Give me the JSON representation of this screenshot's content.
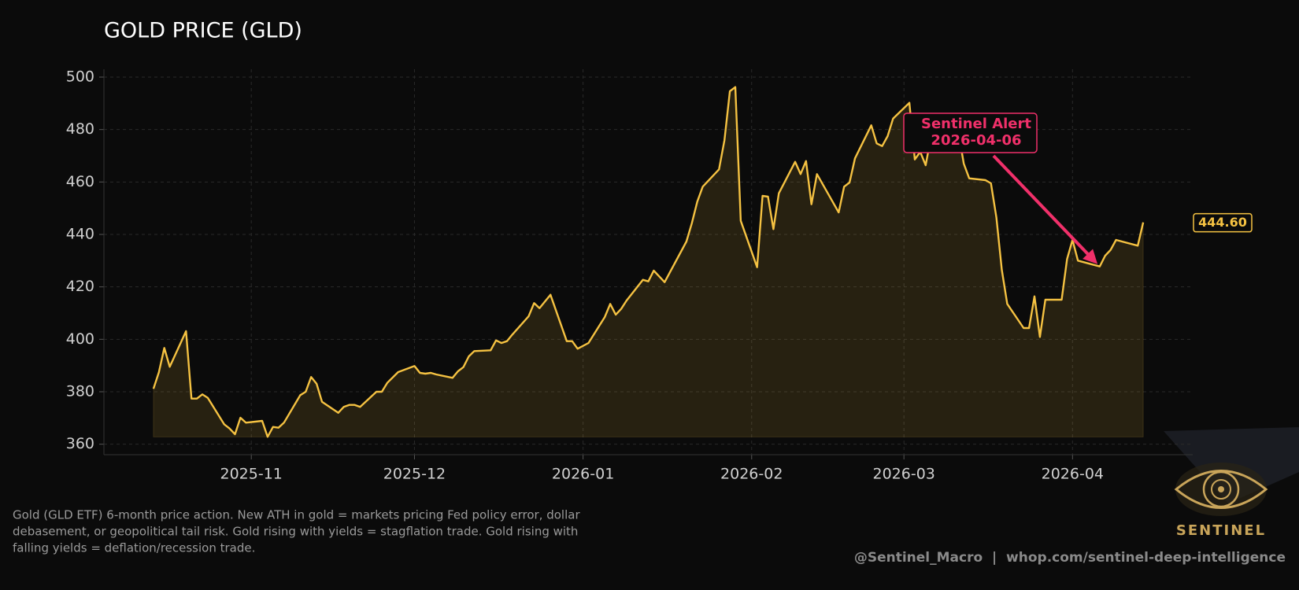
{
  "chart_data": {
    "type": "area-line",
    "title": "GOLD PRICE (GLD)",
    "x": [
      "2025-10-14",
      "2025-10-15",
      "2025-10-16",
      "2025-10-17",
      "2025-10-20",
      "2025-10-21",
      "2025-10-22",
      "2025-10-23",
      "2025-10-24",
      "2025-10-27",
      "2025-10-28",
      "2025-10-29",
      "2025-10-30",
      "2025-10-31",
      "2025-11-03",
      "2025-11-04",
      "2025-11-05",
      "2025-11-06",
      "2025-11-07",
      "2025-11-10",
      "2025-11-11",
      "2025-11-12",
      "2025-11-13",
      "2025-11-14",
      "2025-11-17",
      "2025-11-18",
      "2025-11-19",
      "2025-11-20",
      "2025-11-21",
      "2025-11-24",
      "2025-11-25",
      "2025-11-26",
      "2025-11-28",
      "2025-12-01",
      "2025-12-02",
      "2025-12-03",
      "2025-12-04",
      "2025-12-05",
      "2025-12-08",
      "2025-12-09",
      "2025-12-10",
      "2025-12-11",
      "2025-12-12",
      "2025-12-15",
      "2025-12-16",
      "2025-12-17",
      "2025-12-18",
      "2025-12-19",
      "2025-12-22",
      "2025-12-23",
      "2025-12-24",
      "2025-12-26",
      "2025-12-29",
      "2025-12-30",
      "2025-12-31",
      "2026-01-02",
      "2026-01-05",
      "2026-01-06",
      "2026-01-07",
      "2026-01-08",
      "2026-01-09",
      "2026-01-12",
      "2026-01-13",
      "2026-01-14",
      "2026-01-15",
      "2026-01-16",
      "2026-01-20",
      "2026-01-21",
      "2026-01-22",
      "2026-01-23",
      "2026-01-26",
      "2026-01-27",
      "2026-01-28",
      "2026-01-29",
      "2026-01-30",
      "2026-02-02",
      "2026-02-03",
      "2026-02-04",
      "2026-02-05",
      "2026-02-06",
      "2026-02-09",
      "2026-02-10",
      "2026-02-11",
      "2026-02-12",
      "2026-02-13",
      "2026-02-17",
      "2026-02-18",
      "2026-02-19",
      "2026-02-20",
      "2026-02-23",
      "2026-02-24",
      "2026-02-25",
      "2026-02-26",
      "2026-02-27",
      "2026-03-02",
      "2026-03-03",
      "2026-03-04",
      "2026-03-05",
      "2026-03-06",
      "2026-03-09",
      "2026-03-10",
      "2026-03-11",
      "2026-03-12",
      "2026-03-13",
      "2026-03-16",
      "2026-03-17",
      "2026-03-18",
      "2026-03-19",
      "2026-03-20",
      "2026-03-23",
      "2026-03-24",
      "2026-03-25",
      "2026-03-26",
      "2026-03-27",
      "2026-03-30",
      "2026-03-31",
      "2026-04-01",
      "2026-04-02",
      "2026-04-06",
      "2026-04-07",
      "2026-04-08",
      "2026-04-09",
      "2026-04-13",
      "2026-04-14"
    ],
    "series": [
      {
        "color": "#f5c242",
        "values": [
          381.1,
          387.4,
          396.7,
          389.5,
          403.1,
          377.4,
          377.4,
          379.0,
          377.7,
          367.6,
          366.0,
          363.8,
          370.1,
          368.2,
          368.9,
          362.8,
          366.6,
          366.3,
          368.2,
          378.7,
          380.0,
          385.6,
          383.1,
          376.2,
          372.0,
          374.2,
          375.0,
          375.0,
          374.2,
          380.0,
          380.0,
          383.4,
          387.5,
          389.8,
          387.2,
          386.9,
          387.2,
          386.6,
          385.3,
          387.8,
          389.4,
          393.5,
          395.5,
          395.8,
          399.6,
          398.6,
          399.3,
          401.8,
          408.8,
          413.8,
          411.9,
          417.0,
          399.3,
          399.3,
          396.4,
          398.6,
          408.5,
          413.5,
          409.4,
          411.6,
          414.8,
          422.7,
          422.1,
          426.2,
          424.0,
          421.8,
          437.3,
          444.3,
          452.5,
          458.2,
          464.8,
          475.9,
          494.6,
          496.2,
          445.2,
          427.5,
          454.7,
          454.4,
          442.0,
          455.7,
          467.7,
          463.0,
          468.0,
          451.5,
          463.0,
          448.4,
          458.2,
          459.8,
          469.0,
          481.6,
          474.7,
          473.7,
          477.5,
          484.2,
          490.2,
          468.6,
          471.5,
          466.4,
          477.5,
          482.3,
          482.3,
          479.1,
          467.0,
          461.4,
          460.7,
          459.5,
          446.5,
          426.5,
          413.5,
          404.3,
          404.3,
          416.4,
          400.9,
          415.1,
          415.1,
          430.6,
          437.9,
          430.0,
          427.8,
          431.9,
          434.1,
          437.9,
          435.7,
          444.6
        ]
      }
    ],
    "ylim": [
      356,
      503
    ],
    "yticks": [
      360,
      380,
      400,
      420,
      440,
      460,
      480,
      500
    ],
    "xticks": [
      "2025-11",
      "2025-12",
      "2026-01",
      "2026-02",
      "2026-03",
      "2026-04"
    ],
    "grid": true,
    "end_label": {
      "value": 444.6,
      "label": "444.60"
    },
    "annotation": {
      "lines": [
        "Sentinel Alert",
        "2026-04-06"
      ],
      "color": "#f0306a"
    },
    "description": [
      "Gold (GLD ETF) 6-month price action. New ATH in gold = markets pricing Fed policy error, dollar",
      "debasement, or geopolitical tail risk. Gold rising with yields = stagflation trade. Gold rising with",
      "falling yields = deflation/recession trade."
    ],
    "footer": "@Sentinel_Macro  |  whop.com/sentinel-deep-intelligence",
    "logo_text": "SENTINEL"
  }
}
